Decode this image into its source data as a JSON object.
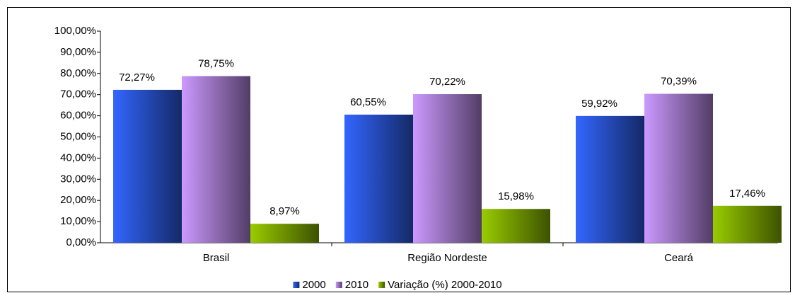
{
  "chart_data": {
    "type": "bar",
    "categories": [
      "Brasil",
      "Região Nordeste",
      "Ceará"
    ],
    "series": [
      {
        "name": "2000",
        "color": "#3366ff",
        "values": [
          72.27,
          60.55,
          59.92
        ],
        "value_labels": [
          "72,27%",
          "60,55%",
          "59,92%"
        ]
      },
      {
        "name": "2010",
        "color": "#cc99ff",
        "values": [
          78.75,
          70.22,
          70.39
        ],
        "value_labels": [
          "78,75%",
          "70,22%",
          "70,39%"
        ]
      },
      {
        "name": "Variação (%) 2000-2010",
        "color": "#99cc00",
        "values": [
          8.97,
          15.98,
          17.46
        ],
        "value_labels": [
          "8,97%",
          "15,98%",
          "17,46%"
        ]
      }
    ],
    "ylim": [
      0,
      100
    ],
    "yticks": [
      {
        "value": 0,
        "label": "0,00%"
      },
      {
        "value": 10,
        "label": "10,00%"
      },
      {
        "value": 20,
        "label": "20,00%"
      },
      {
        "value": 30,
        "label": "30,00%"
      },
      {
        "value": 40,
        "label": "40,00%"
      },
      {
        "value": 50,
        "label": "50,00%"
      },
      {
        "value": 60,
        "label": "60,00%"
      },
      {
        "value": 70,
        "label": "70,00%"
      },
      {
        "value": 80,
        "label": "80,00%"
      },
      {
        "value": 90,
        "label": "90,00%"
      },
      {
        "value": 100,
        "label": "100,00%"
      }
    ],
    "grid": false,
    "legend": "bottom"
  }
}
